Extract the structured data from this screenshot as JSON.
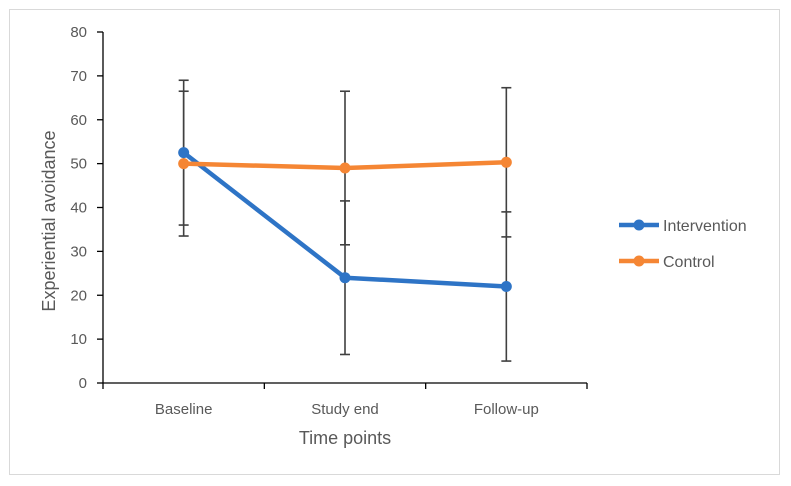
{
  "chart_data": {
    "type": "line",
    "title": "",
    "xlabel": "Time points",
    "ylabel": "Experiential avoidance",
    "categories": [
      "Baseline",
      "Study end",
      "Follow-up"
    ],
    "ylim": [
      0,
      80
    ],
    "yticks": [
      0,
      10,
      20,
      30,
      40,
      50,
      60,
      70,
      80
    ],
    "ytick_labels": [
      "0",
      "10",
      "20",
      "30",
      "40",
      "50",
      "60",
      "70",
      "80"
    ],
    "grid": false,
    "legend_position": "right",
    "series": [
      {
        "name": "Intervention",
        "color": "#2E74C6",
        "values": [
          52.5,
          24,
          22
        ],
        "error_low": [
          36,
          6.5,
          5
        ],
        "error_high": [
          69,
          41.5,
          39
        ]
      },
      {
        "name": "Control",
        "color": "#F58634",
        "values": [
          50,
          49,
          50.3
        ],
        "error_low": [
          33.5,
          31.5,
          33.3
        ],
        "error_high": [
          66.5,
          66.5,
          67.3
        ]
      }
    ],
    "axis_color": "#000000",
    "errorbar_color": "#404040"
  }
}
